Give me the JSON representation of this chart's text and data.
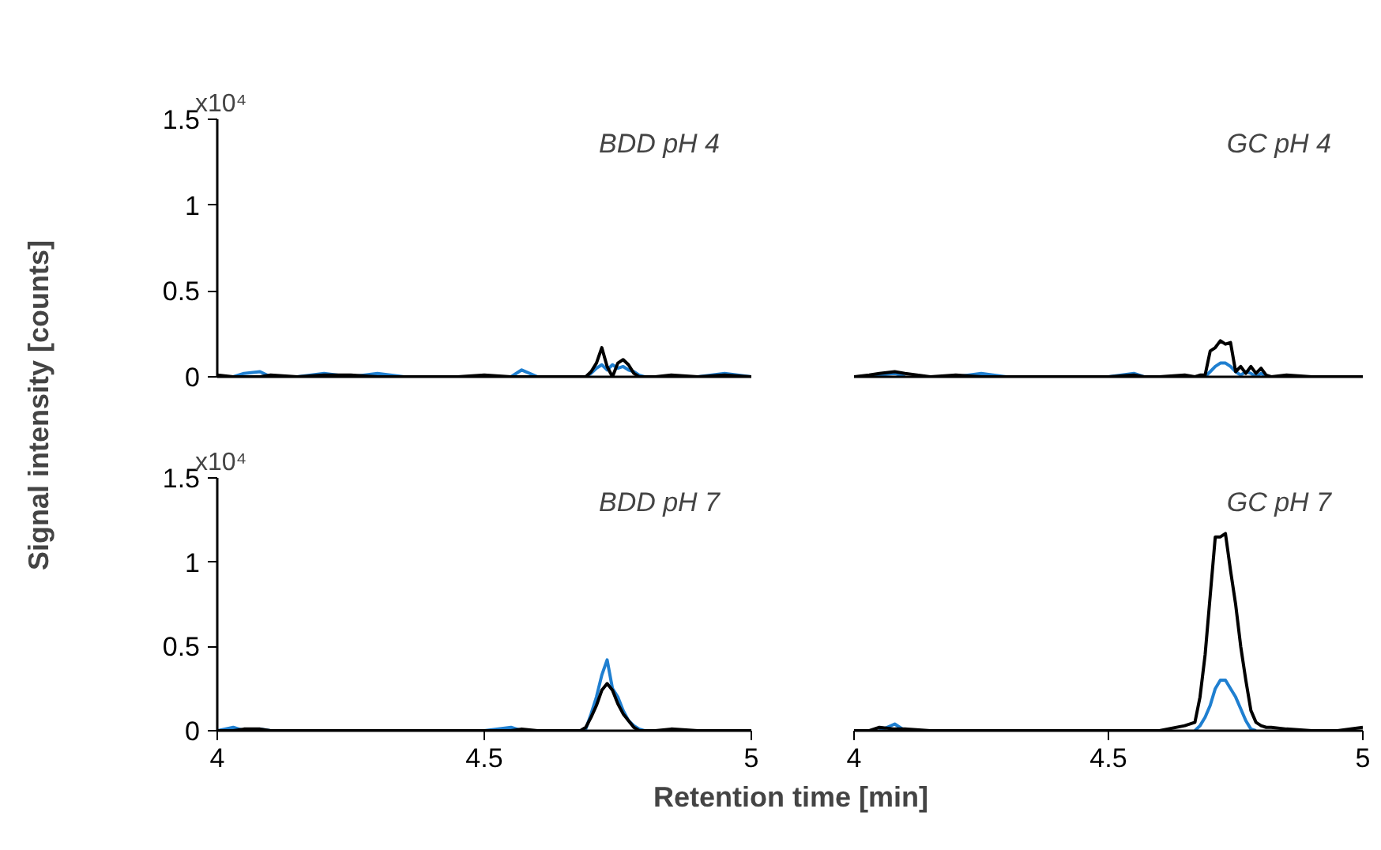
{
  "chart_data": [
    {
      "type": "line",
      "title": "BDD pH 4",
      "ylabel": "Signal intensity [counts]",
      "annotations": [
        "x10⁴"
      ],
      "tick_labels": "y",
      "x": [
        4.0,
        4.03,
        4.05,
        4.08,
        4.1,
        4.15,
        4.2,
        4.25,
        4.3,
        4.35,
        4.4,
        4.45,
        4.5,
        4.55,
        4.57,
        4.6,
        4.65,
        4.67,
        4.68,
        4.69,
        4.7,
        4.71,
        4.72,
        4.73,
        4.74,
        4.75,
        4.76,
        4.77,
        4.78,
        4.79,
        4.8,
        4.81,
        4.82,
        4.85,
        4.9,
        4.95,
        5.0
      ],
      "series": [
        {
          "color": "#1f7fd0",
          "values": [
            null,
            0,
            0.02,
            0.03,
            0,
            0,
            0.02,
            0,
            0.02,
            0,
            null,
            null,
            null,
            0,
            0.04,
            0,
            null,
            null,
            null,
            0,
            0.02,
            0.05,
            0.07,
            0.04,
            0.07,
            0.05,
            0.06,
            0.04,
            0.03,
            0.01,
            0,
            null,
            null,
            null,
            0,
            0.02,
            0
          ]
        },
        {
          "color": "#000000",
          "values": [
            0.01,
            0,
            0,
            0,
            0.01,
            0,
            0.01,
            0.01,
            0,
            0,
            0,
            0,
            0.01,
            0,
            0,
            0,
            0,
            0,
            0,
            0,
            0.03,
            0.08,
            0.17,
            0.06,
            0,
            0.08,
            0.1,
            0.07,
            0.02,
            0,
            0,
            0,
            0,
            0.01,
            0,
            0.01,
            0
          ]
        }
      ],
      "xlim": [
        4,
        5
      ],
      "xticks": [
        4,
        4.5,
        5
      ],
      "ylim": [
        0,
        1.5
      ],
      "yticks": [
        0,
        0.5,
        1,
        1.5
      ]
    },
    {
      "type": "line",
      "title": "GC pH 4",
      "tick_labels": false,
      "x": [
        4.0,
        4.03,
        4.05,
        4.08,
        4.1,
        4.15,
        4.2,
        4.25,
        4.3,
        4.35,
        4.4,
        4.45,
        4.5,
        4.55,
        4.57,
        4.6,
        4.65,
        4.67,
        4.68,
        4.69,
        4.7,
        4.71,
        4.72,
        4.73,
        4.74,
        4.75,
        4.76,
        4.77,
        4.78,
        4.79,
        4.8,
        4.81,
        4.82,
        4.85,
        4.9,
        4.95,
        5.0
      ],
      "series": [
        {
          "color": "#1f7fd0",
          "values": [
            null,
            0,
            0.01,
            0.02,
            0,
            null,
            0,
            0.02,
            0,
            null,
            null,
            null,
            0,
            0.02,
            0,
            null,
            null,
            null,
            null,
            0,
            0.03,
            0.06,
            0.08,
            0.08,
            0.06,
            0.03,
            0.01,
            0.03,
            0.02,
            0,
            0.02,
            0,
            null,
            null,
            null,
            null,
            null
          ]
        },
        {
          "color": "#000000",
          "values": [
            0,
            0.01,
            0.02,
            0.03,
            0.02,
            0,
            0.01,
            0,
            0,
            0,
            0,
            0,
            0,
            0.01,
            0,
            0,
            0.01,
            0,
            0.01,
            0.01,
            0.15,
            0.17,
            0.21,
            0.19,
            0.2,
            0.03,
            0.06,
            0.02,
            0.06,
            0.02,
            0.05,
            0.01,
            0,
            0.01,
            0,
            0,
            0
          ]
        }
      ],
      "xlim": [
        4,
        5
      ],
      "xticks": [
        4,
        4.5,
        5
      ],
      "ylim": [
        0,
        1.5
      ],
      "yticks": [
        0,
        0.5,
        1,
        1.5
      ]
    },
    {
      "type": "line",
      "title": "BDD pH 7",
      "xlabel": "Retention time [min]",
      "annotations": [
        "x10⁴"
      ],
      "x": [
        4.0,
        4.03,
        4.05,
        4.08,
        4.1,
        4.15,
        4.2,
        4.25,
        4.3,
        4.35,
        4.4,
        4.45,
        4.5,
        4.55,
        4.57,
        4.6,
        4.65,
        4.67,
        4.68,
        4.69,
        4.7,
        4.71,
        4.72,
        4.73,
        4.74,
        4.75,
        4.76,
        4.77,
        4.78,
        4.79,
        4.8,
        4.81,
        4.82,
        4.85,
        4.9,
        4.95,
        5.0
      ],
      "series": [
        {
          "color": "#1f7fd0",
          "values": [
            0,
            0.02,
            0,
            0.01,
            0,
            null,
            null,
            null,
            null,
            null,
            null,
            null,
            0,
            0.02,
            0,
            null,
            null,
            null,
            0,
            0.01,
            0.1,
            0.2,
            0.33,
            0.42,
            0.25,
            0.2,
            0.12,
            0.06,
            0.03,
            0.01,
            0,
            null,
            null,
            null,
            null,
            null,
            null
          ]
        },
        {
          "color": "#000000",
          "values": [
            0,
            0,
            0.01,
            0.01,
            0,
            0,
            0,
            0,
            0,
            0,
            0,
            0,
            0,
            0,
            0.01,
            0,
            0,
            0,
            0,
            0.02,
            0.08,
            0.15,
            0.24,
            0.28,
            0.24,
            0.16,
            0.1,
            0.06,
            0.02,
            0,
            0,
            0,
            0,
            0.01,
            0,
            0,
            0
          ]
        }
      ],
      "xlim": [
        4,
        5
      ],
      "xticks": [
        4,
        4.5,
        5
      ],
      "ylim": [
        0,
        1.5
      ],
      "yticks": [
        0,
        0.5,
        1,
        1.5
      ]
    },
    {
      "type": "line",
      "title": "GC pH 7",
      "tick_labels": "x",
      "x": [
        4.0,
        4.03,
        4.05,
        4.08,
        4.1,
        4.15,
        4.2,
        4.25,
        4.3,
        4.35,
        4.4,
        4.45,
        4.5,
        4.55,
        4.57,
        4.6,
        4.65,
        4.67,
        4.68,
        4.69,
        4.7,
        4.71,
        4.72,
        4.73,
        4.74,
        4.75,
        4.76,
        4.77,
        4.78,
        4.79,
        4.8,
        4.81,
        4.82,
        4.85,
        4.9,
        4.95,
        5.0
      ],
      "series": [
        {
          "color": "#1f7fd0",
          "values": [
            null,
            null,
            0,
            0.04,
            0,
            null,
            null,
            null,
            null,
            null,
            null,
            null,
            null,
            null,
            null,
            null,
            null,
            0,
            0.03,
            0.08,
            0.15,
            0.25,
            0.3,
            0.3,
            0.25,
            0.2,
            0.13,
            0.06,
            0.01,
            0,
            null,
            null,
            null,
            null,
            null,
            null,
            null
          ]
        },
        {
          "color": "#000000",
          "values": [
            0,
            0,
            0.02,
            0.01,
            0.01,
            0,
            0,
            0,
            0,
            0,
            0,
            0,
            0,
            0,
            0,
            0,
            0.03,
            0.05,
            0.2,
            0.45,
            0.8,
            1.15,
            1.15,
            1.17,
            0.95,
            0.75,
            0.5,
            0.3,
            0.12,
            0.05,
            0.03,
            0.02,
            0.02,
            0.01,
            0,
            0,
            0.02
          ]
        }
      ],
      "xlim": [
        4,
        5
      ],
      "xticks": [
        4,
        4.5,
        5
      ],
      "ylim": [
        0,
        1.5
      ],
      "yticks": [
        0,
        0.5,
        1,
        1.5
      ]
    }
  ]
}
